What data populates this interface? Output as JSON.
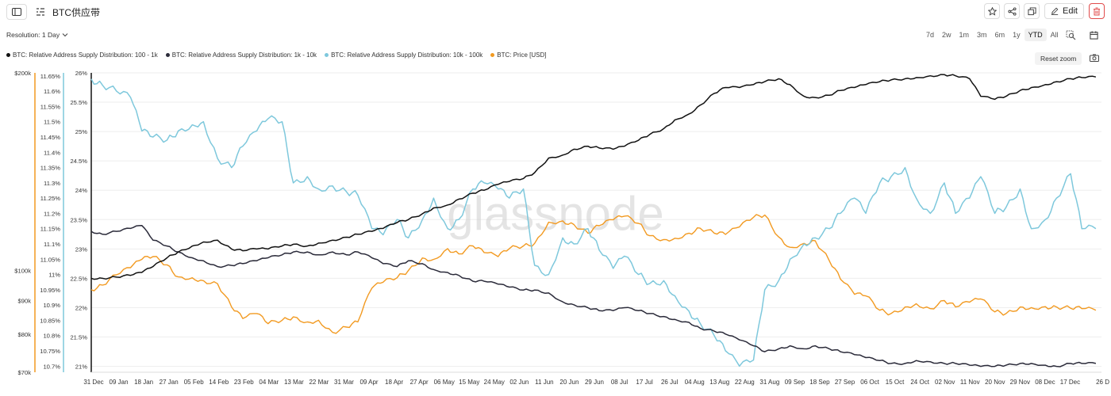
{
  "header": {
    "title": "BTC供应带",
    "edit_label": "Edit"
  },
  "toolbar": {
    "resolution_label": "Resolution: 1 Day",
    "ranges": [
      "7d",
      "2w",
      "1m",
      "3m",
      "6m",
      "1y",
      "YTD",
      "All"
    ],
    "active_range": "YTD",
    "reset_zoom_label": "Reset zoom"
  },
  "legend": [
    {
      "label": "BTC: Relative Address Supply Distribution: 100 - 1k",
      "color": "#111111"
    },
    {
      "label": "BTC: Relative Address Supply Distribution: 1k - 10k",
      "color": "#2b2b3a"
    },
    {
      "label": "BTC: Relative Address Supply Distribution: 10k - 100k",
      "color": "#7ec8dc"
    },
    {
      "label": "BTC: Price [USD]",
      "color": "#f29a21"
    }
  ],
  "watermark": "glassnode",
  "chart_data": {
    "type": "line",
    "x_ticks": [
      "31 Dec",
      "09 Jan",
      "18 Jan",
      "27 Jan",
      "05 Feb",
      "14 Feb",
      "23 Feb",
      "04 Mar",
      "13 Mar",
      "22 Mar",
      "31 Mar",
      "09 Apr",
      "18 Apr",
      "27 Apr",
      "06 May",
      "15 May",
      "24 May",
      "02 Jun",
      "11 Jun",
      "20 Jun",
      "29 Jun",
      "08 Jul",
      "17 Jul",
      "26 Jul",
      "04 Aug",
      "13 Aug",
      "22 Aug",
      "31 Aug",
      "09 Sep",
      "18 Sep",
      "27 Sep",
      "06 Oct",
      "15 Oct",
      "24 Oct",
      "02 Nov",
      "11 Nov",
      "20 Nov",
      "29 Nov",
      "08 Dec",
      "17 Dec",
      "26 D"
    ],
    "axes": {
      "price": {
        "ticks": [
          "$200k",
          "$100k",
          "$90k",
          "$80k",
          "$70k"
        ],
        "color": "#f29a21",
        "scale": "log",
        "range": [
          70000,
          200000
        ]
      },
      "band_10k_100k": {
        "ticks": [
          "11.65%",
          "11.6%",
          "11.55%",
          "11.5%",
          "11.45%",
          "11.4%",
          "11.35%",
          "11.3%",
          "11.25%",
          "11.2%",
          "11.15%",
          "11.1%",
          "11.05%",
          "11%",
          "10.95%",
          "10.9%",
          "10.85%",
          "10.8%",
          "10.75%",
          "10.7%"
        ],
        "color": "#7ec8dc",
        "range": [
          10.68,
          11.66
        ]
      },
      "band_100_1k": {
        "ticks": [
          "26%",
          "25.5%",
          "25%",
          "24.5%",
          "24%",
          "23.5%",
          "23%",
          "22.5%",
          "22%",
          "21.5%",
          "21%"
        ],
        "color": "#111111",
        "range": [
          20.9,
          26.0
        ]
      }
    },
    "series": [
      {
        "name": "BTC: Relative Address Supply Distribution: 100 - 1k",
        "axis": "band_100_1k",
        "color": "#111111",
        "x": [
          0,
          4,
          9,
          14,
          18,
          22,
          27,
          31,
          36,
          40,
          45,
          50,
          54,
          59,
          63,
          68,
          72,
          77,
          81,
          86,
          91,
          95,
          100,
          104,
          109,
          113,
          118,
          122,
          127,
          131,
          136,
          140,
          145,
          149,
          154,
          158,
          163,
          168,
          172,
          177,
          181,
          186,
          190,
          195,
          199,
          204,
          208,
          213,
          217,
          222,
          226,
          231,
          236,
          240,
          245,
          249,
          254,
          258,
          263,
          267,
          272,
          276,
          281,
          285,
          290,
          294,
          299,
          304,
          308,
          313,
          317,
          322,
          326,
          331,
          335,
          340,
          344,
          349,
          353,
          358
        ],
        "values": [
          22.5,
          22.5,
          22.52,
          22.55,
          22.6,
          22.7,
          22.85,
          22.95,
          23.05,
          23.12,
          23.15,
          23.0,
          22.97,
          23.0,
          23.0,
          23.05,
          23.08,
          23.05,
          23.1,
          23.15,
          23.2,
          23.25,
          23.3,
          23.35,
          23.45,
          23.5,
          23.6,
          23.7,
          23.75,
          23.85,
          23.95,
          24.0,
          24.1,
          24.15,
          24.2,
          24.3,
          24.55,
          24.6,
          24.7,
          24.75,
          24.72,
          24.7,
          24.75,
          24.85,
          24.95,
          25.05,
          25.2,
          25.3,
          25.45,
          25.65,
          25.75,
          25.75,
          25.8,
          25.85,
          25.9,
          25.8,
          25.6,
          25.58,
          25.62,
          25.7,
          25.75,
          25.8,
          25.85,
          25.88,
          25.9,
          25.92,
          25.95,
          25.97,
          25.95,
          25.9,
          25.6,
          25.55,
          25.6,
          25.7,
          25.75,
          25.8,
          25.85,
          25.9,
          25.92,
          25.93
        ]
      },
      {
        "name": "BTC: Relative Address Supply Distribution: 1k - 10k",
        "axis": "band_100_1k",
        "color": "#2b2b3a",
        "x": [
          0,
          4,
          9,
          14,
          18,
          22,
          27,
          31,
          36,
          40,
          45,
          50,
          54,
          59,
          63,
          68,
          72,
          77,
          81,
          86,
          91,
          95,
          100,
          104,
          109,
          113,
          118,
          122,
          127,
          131,
          136,
          140,
          145,
          149,
          154,
          158,
          163,
          168,
          172,
          177,
          181,
          186,
          190,
          195,
          199,
          204,
          208,
          213,
          217,
          222,
          226,
          231,
          236,
          240,
          245,
          249,
          254,
          258,
          263,
          267,
          272,
          276,
          281,
          285,
          290,
          294,
          299,
          304,
          308,
          313,
          317,
          322,
          326,
          331,
          335,
          340,
          344,
          349,
          353,
          358
        ],
        "values": [
          23.3,
          23.25,
          23.3,
          23.35,
          23.4,
          23.15,
          23.05,
          22.95,
          22.85,
          22.8,
          22.7,
          22.72,
          22.75,
          22.8,
          22.85,
          22.9,
          22.95,
          22.95,
          22.9,
          22.95,
          22.9,
          22.95,
          22.85,
          22.75,
          22.7,
          22.8,
          22.75,
          22.65,
          22.6,
          22.55,
          22.45,
          22.45,
          22.4,
          22.35,
          22.3,
          22.3,
          22.25,
          22.1,
          22.05,
          22.0,
          21.95,
          21.95,
          22.0,
          21.95,
          21.9,
          21.85,
          21.8,
          21.75,
          21.65,
          21.6,
          21.55,
          21.45,
          21.35,
          21.25,
          21.3,
          21.35,
          21.3,
          21.35,
          21.3,
          21.25,
          21.2,
          21.15,
          21.1,
          21.05,
          21.05,
          21.1,
          21.08,
          21.05,
          21.05,
          21.02,
          21.0,
          21.0,
          21.02,
          21.05,
          21.05,
          21.02,
          21.0,
          21.05,
          21.05,
          21.05
        ]
      },
      {
        "name": "BTC: Relative Address Supply Distribution: 10k - 100k",
        "axis": "band_10k_100k",
        "color": "#7ec8dc",
        "x": [
          0,
          4,
          9,
          14,
          18,
          22,
          27,
          31,
          36,
          40,
          45,
          50,
          54,
          59,
          63,
          68,
          72,
          77,
          81,
          86,
          91,
          95,
          100,
          104,
          109,
          113,
          118,
          122,
          127,
          131,
          136,
          140,
          145,
          149,
          154,
          158,
          163,
          168,
          172,
          177,
          181,
          186,
          190,
          195,
          199,
          204,
          208,
          213,
          217,
          222,
          226,
          231,
          236,
          240,
          245,
          249,
          254,
          258,
          263,
          267,
          272,
          276,
          281,
          285,
          290,
          294,
          299,
          304,
          308,
          313,
          317,
          322,
          326,
          331,
          335,
          340,
          344,
          349,
          353,
          358
        ],
        "values": [
          11.64,
          11.62,
          11.6,
          11.58,
          11.47,
          11.45,
          11.44,
          11.47,
          11.49,
          11.5,
          11.38,
          11.35,
          11.42,
          11.47,
          11.51,
          11.5,
          11.3,
          11.32,
          11.28,
          11.29,
          11.27,
          11.26,
          11.15,
          11.13,
          11.18,
          11.12,
          11.18,
          11.25,
          11.15,
          11.18,
          11.28,
          11.3,
          11.28,
          11.25,
          11.28,
          11.03,
          11.0,
          11.12,
          11.1,
          11.15,
          11.08,
          11.02,
          11.06,
          11.0,
          10.97,
          10.98,
          10.93,
          10.88,
          10.84,
          10.8,
          10.75,
          10.7,
          10.72,
          10.95,
          10.98,
          11.05,
          11.1,
          11.12,
          11.15,
          11.2,
          11.25,
          11.2,
          11.3,
          11.32,
          11.35,
          11.25,
          11.2,
          11.3,
          11.2,
          11.25,
          11.32,
          11.2,
          11.22,
          11.28,
          11.15,
          11.18,
          11.25,
          11.33,
          11.15,
          11.15
        ]
      },
      {
        "name": "BTC: Price [USD]",
        "axis": "price",
        "color": "#f29a21",
        "x": [
          0,
          4,
          9,
          14,
          18,
          22,
          27,
          31,
          36,
          40,
          45,
          50,
          54,
          59,
          63,
          68,
          72,
          77,
          81,
          86,
          91,
          95,
          100,
          104,
          109,
          113,
          118,
          122,
          127,
          131,
          136,
          140,
          145,
          149,
          154,
          158,
          163,
          168,
          172,
          177,
          181,
          186,
          190,
          195,
          199,
          204,
          208,
          213,
          217,
          222,
          226,
          231,
          236,
          240,
          245,
          249,
          254,
          258,
          263,
          267,
          272,
          276,
          281,
          285,
          290,
          294,
          299,
          304,
          308,
          313,
          317,
          322,
          326,
          331,
          335,
          340,
          344,
          349,
          353,
          358
        ],
        "values": [
          93500,
          95000,
          98500,
          101000,
          104000,
          105000,
          102000,
          97800,
          97500,
          96500,
          95500,
          88000,
          84500,
          86000,
          83000,
          84000,
          85000,
          83500,
          84000,
          80500,
          82000,
          83500,
          94000,
          96000,
          97500,
          100000,
          104500,
          104000,
          108000,
          106000,
          109000,
          106500,
          105000,
          108000,
          109000,
          110000,
          118500,
          119000,
          117500,
          114000,
          117000,
          119500,
          121000,
          118000,
          113000,
          111500,
          112000,
          114000,
          116000,
          114000,
          113500,
          116500,
          120500,
          121500,
          112500,
          108500,
          110000,
          111000,
          103500,
          97000,
          92000,
          91500,
          87000,
          86000,
          88000,
          89000,
          87500,
          90000,
          88000,
          89500,
          90500,
          86500,
          86000,
          88000,
          87800,
          88100,
          88000,
          87600,
          87500,
          87000
        ]
      }
    ],
    "grid": true,
    "legend_position": "top-left"
  }
}
